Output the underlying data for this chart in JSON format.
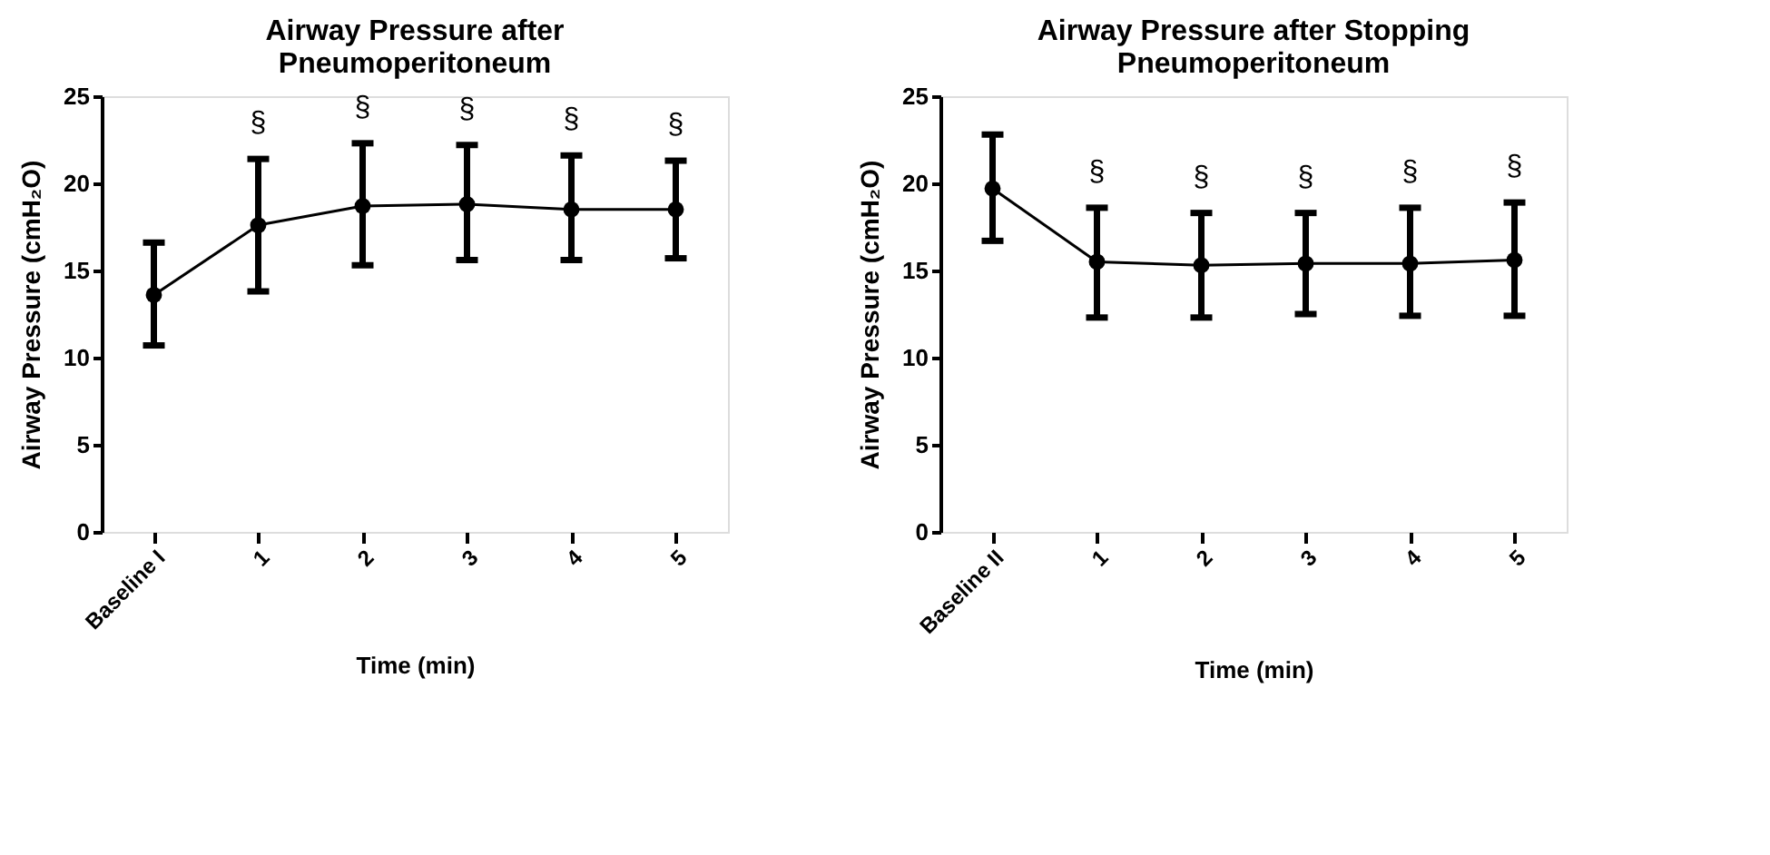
{
  "chart_data": [
    {
      "type": "line",
      "title": "Airway Pressure after\nPneumoperitoneum",
      "xlabel": "Time (min)",
      "ylabel": "Airway Pressure (cmH₂O)",
      "categories": [
        "Baseline I",
        "1",
        "2",
        "3",
        "4",
        "5"
      ],
      "series": [
        {
          "color": "#000000",
          "values": [
            13.6,
            17.6,
            18.7,
            18.8,
            18.5,
            18.5
          ],
          "errors": [
            [
              10.7,
              16.6
            ],
            [
              13.8,
              21.4
            ],
            [
              15.3,
              22.3
            ],
            [
              15.6,
              22.2
            ],
            [
              15.6,
              21.6
            ],
            [
              15.7,
              21.3
            ]
          ]
        }
      ],
      "ylim": [
        0,
        25
      ],
      "yticks": [
        0,
        5,
        10,
        15,
        20,
        25
      ],
      "grid": false,
      "marker": "circle",
      "line_style": "solid",
      "annotations": [
        "§",
        "§",
        "§",
        "§",
        "§"
      ]
    },
    {
      "type": "line",
      "title": "Airway Pressure after Stopping\nPneumoperitoneum",
      "xlabel": "Time (min)",
      "ylabel": "Airway Pressure (cmH₂O)",
      "categories": [
        "Baseline II",
        "1",
        "2",
        "3",
        "4",
        "5"
      ],
      "series": [
        {
          "color": "#000000",
          "values": [
            19.7,
            15.5,
            15.3,
            15.4,
            15.4,
            15.6
          ],
          "errors": [
            [
              16.7,
              22.8
            ],
            [
              12.3,
              18.6
            ],
            [
              12.3,
              18.3
            ],
            [
              12.5,
              18.3
            ],
            [
              12.4,
              18.6
            ],
            [
              12.4,
              18.9
            ]
          ]
        }
      ],
      "ylim": [
        0,
        25
      ],
      "yticks": [
        0,
        5,
        10,
        15,
        20,
        25
      ],
      "grid": false,
      "marker": "circle",
      "line_style": "solid",
      "annotations": [
        "§",
        "§",
        "§",
        "§",
        "§"
      ]
    }
  ]
}
